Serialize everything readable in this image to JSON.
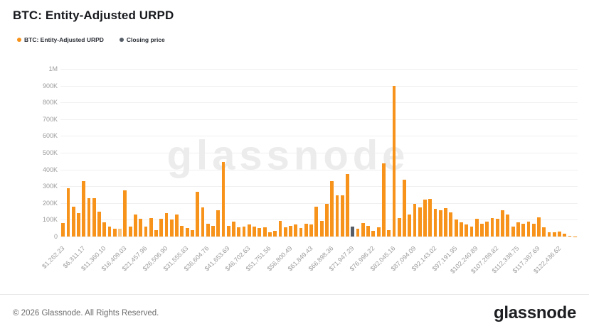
{
  "title": "BTC: Entity-Adjusted URPD",
  "legend": {
    "items": [
      {
        "label": "BTC: Entity-Adjusted URPD",
        "color": "#F7931A"
      },
      {
        "label": "Closing price",
        "color": "#565D66"
      }
    ]
  },
  "watermark": "glassnode",
  "footer": {
    "copyright": "© 2026 Glassnode. All Rights Reserved.",
    "logo_text": "glassnode"
  },
  "colors": {
    "bar_orange": "#F7931A",
    "bar_light_orange": "#F9C583",
    "bar_closing_dark": "#565D66",
    "axis_text": "#9B9B9B",
    "gridline": "#F0F0F0"
  },
  "chart_data": {
    "type": "bar",
    "title": "BTC: Entity-Adjusted URPD",
    "series_name": "BTC: Entity-Adjusted URPD",
    "xlabel": "",
    "ylabel": "",
    "ylim": [
      0,
      1000000
    ],
    "grid": "horizontal",
    "legend_position": "top-left",
    "y_ticks": [
      "0",
      "100K",
      "200K",
      "300K",
      "400K",
      "500K",
      "600K",
      "700K",
      "800K",
      "900K",
      "1M"
    ],
    "x_tick_every": 4,
    "x_tick_labels": [
      "$1,262.23",
      "$6,311.17",
      "$11,360.10",
      "$16,409.03",
      "$21,457.96",
      "$26,506.90",
      "$31,555.83",
      "$36,604.76",
      "$41,653.69",
      "$46,702.63",
      "$51,751.56",
      "$56,800.49",
      "$61,849.43",
      "$66,898.36",
      "$71,947.29",
      "$76,996.22",
      "$82,045.16",
      "$87,094.09",
      "$92,143.02",
      "$97,191.95",
      "$102,240.89",
      "$107,289.82",
      "$112,338.75",
      "$117,387.69",
      "$122,436.62"
    ],
    "values": [
      80000,
      290000,
      180000,
      140000,
      330000,
      230000,
      230000,
      150000,
      85000,
      60000,
      45000,
      45000,
      275000,
      60000,
      130000,
      105000,
      60000,
      110000,
      40000,
      105000,
      140000,
      100000,
      130000,
      65000,
      50000,
      40000,
      265000,
      175000,
      75000,
      65000,
      155000,
      445000,
      65000,
      90000,
      55000,
      60000,
      70000,
      60000,
      50000,
      55000,
      25000,
      35000,
      95000,
      55000,
      65000,
      70000,
      50000,
      75000,
      70000,
      180000,
      95000,
      195000,
      330000,
      245000,
      245000,
      375000,
      60000,
      45000,
      80000,
      65000,
      35000,
      55000,
      435000,
      40000,
      900000,
      110000,
      340000,
      130000,
      195000,
      175000,
      220000,
      225000,
      165000,
      155000,
      170000,
      145000,
      100000,
      85000,
      70000,
      60000,
      105000,
      75000,
      90000,
      110000,
      105000,
      155000,
      130000,
      60000,
      85000,
      75000,
      90000,
      75000,
      115000,
      55000,
      25000,
      25000,
      30000,
      15000,
      5000,
      2000
    ],
    "closing_price_bar_index": 56,
    "light_bar_index": 11
  }
}
